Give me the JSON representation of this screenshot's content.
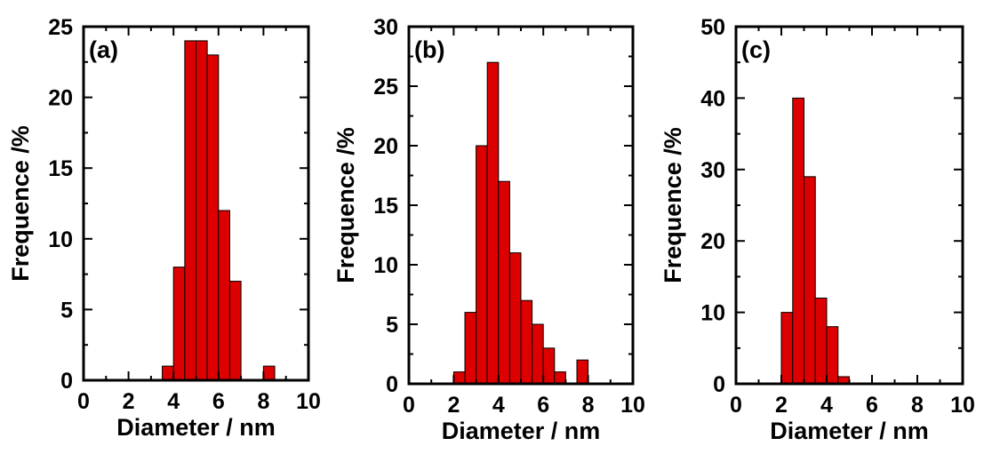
{
  "chart_data": [
    {
      "type": "bar",
      "panel_label": "(a)",
      "xlabel": "Diameter / nm",
      "ylabel": "Frequence /%",
      "xlim": [
        0,
        10
      ],
      "ylim": [
        0,
        25
      ],
      "xticks": [
        0,
        2,
        4,
        6,
        8,
        10
      ],
      "yticks": [
        0,
        5,
        10,
        15,
        20,
        25
      ],
      "bin_width": 0.5,
      "bins": [
        {
          "x": 3.5,
          "value": 1
        },
        {
          "x": 4.0,
          "value": 8
        },
        {
          "x": 4.5,
          "value": 24
        },
        {
          "x": 5.0,
          "value": 24
        },
        {
          "x": 5.5,
          "value": 23
        },
        {
          "x": 6.0,
          "value": 12
        },
        {
          "x": 6.5,
          "value": 7
        },
        {
          "x": 8.0,
          "value": 1
        }
      ],
      "bar_color": "#dd0000"
    },
    {
      "type": "bar",
      "panel_label": "(b)",
      "xlabel": "Diameter / nm",
      "ylabel": "Frequence /%",
      "xlim": [
        0,
        10
      ],
      "ylim": [
        0,
        30
      ],
      "xticks": [
        0,
        2,
        4,
        6,
        8,
        10
      ],
      "yticks": [
        0,
        5,
        10,
        15,
        20,
        25,
        30
      ],
      "bin_width": 0.5,
      "bins": [
        {
          "x": 2.0,
          "value": 1
        },
        {
          "x": 2.5,
          "value": 6
        },
        {
          "x": 3.0,
          "value": 20
        },
        {
          "x": 3.5,
          "value": 27
        },
        {
          "x": 4.0,
          "value": 17
        },
        {
          "x": 4.5,
          "value": 11
        },
        {
          "x": 5.0,
          "value": 7
        },
        {
          "x": 5.5,
          "value": 5
        },
        {
          "x": 6.0,
          "value": 3
        },
        {
          "x": 6.5,
          "value": 1
        },
        {
          "x": 7.5,
          "value": 2
        }
      ],
      "bar_color": "#dd0000"
    },
    {
      "type": "bar",
      "panel_label": "(c)",
      "xlabel": "Diameter / nm",
      "ylabel": "Frequence /%",
      "xlim": [
        0,
        10
      ],
      "ylim": [
        0,
        50
      ],
      "xticks": [
        0,
        2,
        4,
        6,
        8,
        10
      ],
      "yticks": [
        0,
        10,
        20,
        30,
        40,
        50
      ],
      "bin_width": 0.5,
      "bins": [
        {
          "x": 2.0,
          "value": 10
        },
        {
          "x": 2.5,
          "value": 40
        },
        {
          "x": 3.0,
          "value": 29
        },
        {
          "x": 3.5,
          "value": 12
        },
        {
          "x": 4.0,
          "value": 8
        },
        {
          "x": 4.5,
          "value": 1
        }
      ],
      "bar_color": "#dd0000"
    }
  ]
}
